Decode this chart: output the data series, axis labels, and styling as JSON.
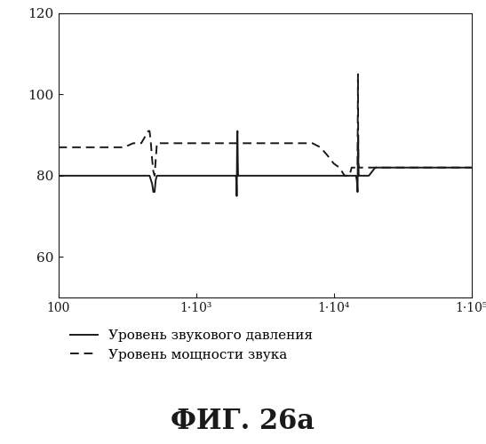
{
  "title": "ФИГ. 26а",
  "legend_solid": "Уровень звукового давления",
  "legend_dashed": "Уровень мощности звука",
  "xlim_log": [
    100,
    100000
  ],
  "ylim": [
    50,
    120
  ],
  "yticks": [
    60,
    80,
    100,
    120
  ],
  "xtick_positions": [
    100,
    1000,
    10000,
    100000
  ],
  "xtick_labels": [
    "100",
    "1·10³",
    "1·10⁴",
    "1·10⁵"
  ],
  "background_color": "#ffffff",
  "line_color": "#1a1a1a",
  "solid_x": [
    100,
    200,
    300,
    400,
    450,
    460,
    470,
    480,
    490,
    500,
    510,
    520,
    600,
    800,
    1000,
    1500,
    1950,
    1960,
    1970,
    1975,
    1980,
    1990,
    2000,
    2010,
    2020,
    2030,
    2040,
    2050,
    2100,
    2500,
    3000,
    4000,
    5000,
    6000,
    7000,
    8000,
    9000,
    10000,
    11000,
    12000,
    13000,
    13500,
    14000,
    14500,
    14700,
    14800,
    14900,
    15000,
    15050,
    15100,
    15200,
    15300,
    15400,
    15500,
    16000,
    17000,
    18000,
    20000,
    25000,
    30000,
    50000,
    100000
  ],
  "solid_y": [
    80,
    80,
    80,
    80,
    80,
    80,
    79,
    78,
    76,
    76,
    79,
    80,
    80,
    80,
    80,
    80,
    80,
    79,
    77,
    75,
    79,
    90,
    91,
    84,
    80,
    80,
    80,
    80,
    80,
    80,
    80,
    80,
    80,
    80,
    80,
    80,
    80,
    80,
    80,
    80,
    80,
    80,
    80,
    80,
    79,
    78,
    76,
    88,
    90,
    83,
    80,
    80,
    80,
    80,
    80,
    80,
    80,
    82,
    82,
    82,
    82,
    82
  ],
  "dashed_x": [
    100,
    150,
    200,
    300,
    350,
    400,
    450,
    460,
    470,
    480,
    490,
    500,
    510,
    520,
    600,
    700,
    800,
    1000,
    1500,
    1950,
    1960,
    1970,
    1975,
    1980,
    1990,
    2000,
    2010,
    2020,
    2030,
    2040,
    2050,
    2100,
    2500,
    3000,
    4000,
    5000,
    6000,
    7000,
    8000,
    9000,
    10000,
    11000,
    12000,
    13000,
    13500,
    14000,
    14500,
    14700,
    14800,
    14900,
    15000,
    15050,
    15100,
    15200,
    15300,
    15500,
    16000,
    17000,
    18000,
    20000,
    25000,
    30000,
    50000,
    100000
  ],
  "dashed_y": [
    87,
    87,
    87,
    87,
    88,
    88,
    91,
    91,
    88,
    84,
    81,
    80,
    84,
    88,
    88,
    88,
    88,
    88,
    88,
    88,
    88,
    88,
    88,
    88,
    88,
    88,
    88,
    88,
    88,
    88,
    88,
    88,
    88,
    88,
    88,
    88,
    88,
    88,
    87,
    85,
    83,
    82,
    80,
    80,
    82,
    82,
    82,
    82,
    82,
    82,
    105,
    90,
    83,
    82,
    82,
    82,
    82,
    82,
    82,
    82,
    82,
    82,
    82,
    82
  ]
}
